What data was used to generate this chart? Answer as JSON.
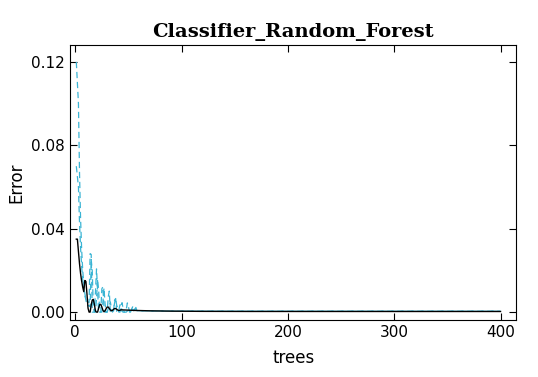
{
  "title": "Classifier_Random_Forest",
  "xlabel": "trees",
  "ylabel": "Error",
  "xlim": [
    -5,
    415
  ],
  "ylim": [
    -0.004,
    0.128
  ],
  "yticks": [
    0.0,
    0.04,
    0.08,
    0.12
  ],
  "xticks": [
    0,
    100,
    200,
    300,
    400
  ],
  "bg_color": "#ffffff",
  "line_black_color": "#000000",
  "line_blue_color": "#3ab4d4",
  "n_trees": 400,
  "title_fontsize": 14,
  "axis_fontsize": 12,
  "tick_fontsize": 11
}
